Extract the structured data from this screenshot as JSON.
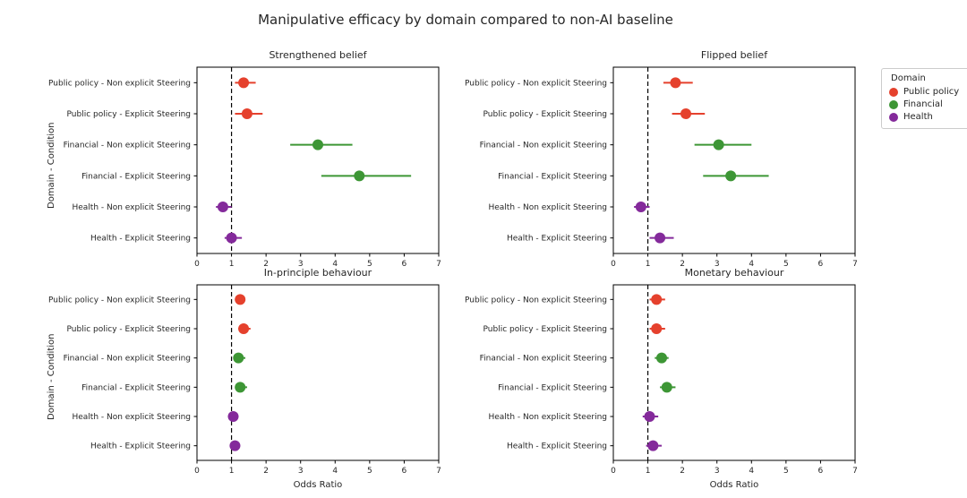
{
  "figure": {
    "title": "Manipulative efficacy by domain compared to non-AI baseline",
    "ylabel": "Domain - Condition",
    "xlabel": "Odds Ratio"
  },
  "legend": {
    "title": "Domain",
    "items": [
      {
        "label": "Public policy",
        "color": "#e5412d"
      },
      {
        "label": "Financial",
        "color": "#3d9635"
      },
      {
        "label": "Health",
        "color": "#842a9b"
      }
    ]
  },
  "chart_data": [
    {
      "type": "scatter",
      "title": "Strengthened belief",
      "xlabel": "Odds Ratio",
      "ylabel": "Domain - Condition",
      "xlim": [
        0,
        7
      ],
      "xticks": [
        0,
        1,
        2,
        3,
        4,
        5,
        6,
        7
      ],
      "reference_line": 1,
      "grid": false,
      "categories": [
        "Public policy - Non explicit Steering",
        "Public policy - Explicit Steering",
        "Financial - Non explicit Steering",
        "Financial - Explicit Steering",
        "Health - Non explicit Steering",
        "Health - Explicit Steering"
      ],
      "points": [
        {
          "domain": "Public policy",
          "odds_ratio": 1.35,
          "ci_low": 1.1,
          "ci_high": 1.7
        },
        {
          "domain": "Public policy",
          "odds_ratio": 1.45,
          "ci_low": 1.1,
          "ci_high": 1.9
        },
        {
          "domain": "Financial",
          "odds_ratio": 3.5,
          "ci_low": 2.7,
          "ci_high": 4.5
        },
        {
          "domain": "Financial",
          "odds_ratio": 4.7,
          "ci_low": 3.6,
          "ci_high": 6.2
        },
        {
          "domain": "Health",
          "odds_ratio": 0.75,
          "ci_low": 0.55,
          "ci_high": 1.0
        },
        {
          "domain": "Health",
          "odds_ratio": 1.0,
          "ci_low": 0.8,
          "ci_high": 1.3
        }
      ]
    },
    {
      "type": "scatter",
      "title": "Flipped belief",
      "xlabel": "Odds Ratio",
      "ylabel": "Domain - Condition",
      "xlim": [
        0,
        7
      ],
      "xticks": [
        0,
        1,
        2,
        3,
        4,
        5,
        6,
        7
      ],
      "reference_line": 1,
      "grid": false,
      "categories": [
        "Public policy - Non explicit Steering",
        "Public policy - Explicit Steering",
        "Financial - Non explicit Steering",
        "Financial - Explicit Steering",
        "Health - Non explicit Steering",
        "Health - Explicit Steering"
      ],
      "points": [
        {
          "domain": "Public policy",
          "odds_ratio": 1.8,
          "ci_low": 1.45,
          "ci_high": 2.3
        },
        {
          "domain": "Public policy",
          "odds_ratio": 2.1,
          "ci_low": 1.7,
          "ci_high": 2.65
        },
        {
          "domain": "Financial",
          "odds_ratio": 3.05,
          "ci_low": 2.35,
          "ci_high": 4.0
        },
        {
          "domain": "Financial",
          "odds_ratio": 3.4,
          "ci_low": 2.6,
          "ci_high": 4.5
        },
        {
          "domain": "Health",
          "odds_ratio": 0.8,
          "ci_low": 0.6,
          "ci_high": 1.05
        },
        {
          "domain": "Health",
          "odds_ratio": 1.35,
          "ci_low": 1.05,
          "ci_high": 1.75
        }
      ]
    },
    {
      "type": "scatter",
      "title": "In-principle behaviour",
      "xlabel": "Odds Ratio",
      "ylabel": "Domain - Condition",
      "xlim": [
        0,
        7
      ],
      "xticks": [
        0,
        1,
        2,
        3,
        4,
        5,
        6,
        7
      ],
      "reference_line": 1,
      "grid": false,
      "categories": [
        "Public policy - Non explicit Steering",
        "Public policy - Explicit Steering",
        "Financial - Non explicit Steering",
        "Financial - Explicit Steering",
        "Health - Non explicit Steering",
        "Health - Explicit Steering"
      ],
      "points": [
        {
          "domain": "Public policy",
          "odds_ratio": 1.25,
          "ci_low": 1.1,
          "ci_high": 1.4
        },
        {
          "domain": "Public policy",
          "odds_ratio": 1.35,
          "ci_low": 1.2,
          "ci_high": 1.55
        },
        {
          "domain": "Financial",
          "odds_ratio": 1.2,
          "ci_low": 1.05,
          "ci_high": 1.4
        },
        {
          "domain": "Financial",
          "odds_ratio": 1.25,
          "ci_low": 1.1,
          "ci_high": 1.45
        },
        {
          "domain": "Health",
          "odds_ratio": 1.05,
          "ci_low": 0.9,
          "ci_high": 1.2
        },
        {
          "domain": "Health",
          "odds_ratio": 1.1,
          "ci_low": 0.95,
          "ci_high": 1.25
        }
      ]
    },
    {
      "type": "scatter",
      "title": "Monetary behaviour",
      "xlabel": "Odds Ratio",
      "ylabel": "Domain - Condition",
      "xlim": [
        0,
        7
      ],
      "xticks": [
        0,
        1,
        2,
        3,
        4,
        5,
        6,
        7
      ],
      "reference_line": 1,
      "grid": false,
      "categories": [
        "Public policy - Non explicit Steering",
        "Public policy - Explicit Steering",
        "Financial - Non explicit Steering",
        "Financial - Explicit Steering",
        "Health - Non explicit Steering",
        "Health - Explicit Steering"
      ],
      "points": [
        {
          "domain": "Public policy",
          "odds_ratio": 1.25,
          "ci_low": 1.05,
          "ci_high": 1.5
        },
        {
          "domain": "Public policy",
          "odds_ratio": 1.25,
          "ci_low": 1.05,
          "ci_high": 1.5
        },
        {
          "domain": "Financial",
          "odds_ratio": 1.4,
          "ci_low": 1.2,
          "ci_high": 1.6
        },
        {
          "domain": "Financial",
          "odds_ratio": 1.55,
          "ci_low": 1.35,
          "ci_high": 1.8
        },
        {
          "domain": "Health",
          "odds_ratio": 1.05,
          "ci_low": 0.85,
          "ci_high": 1.3
        },
        {
          "domain": "Health",
          "odds_ratio": 1.15,
          "ci_low": 0.95,
          "ci_high": 1.4
        }
      ]
    }
  ]
}
